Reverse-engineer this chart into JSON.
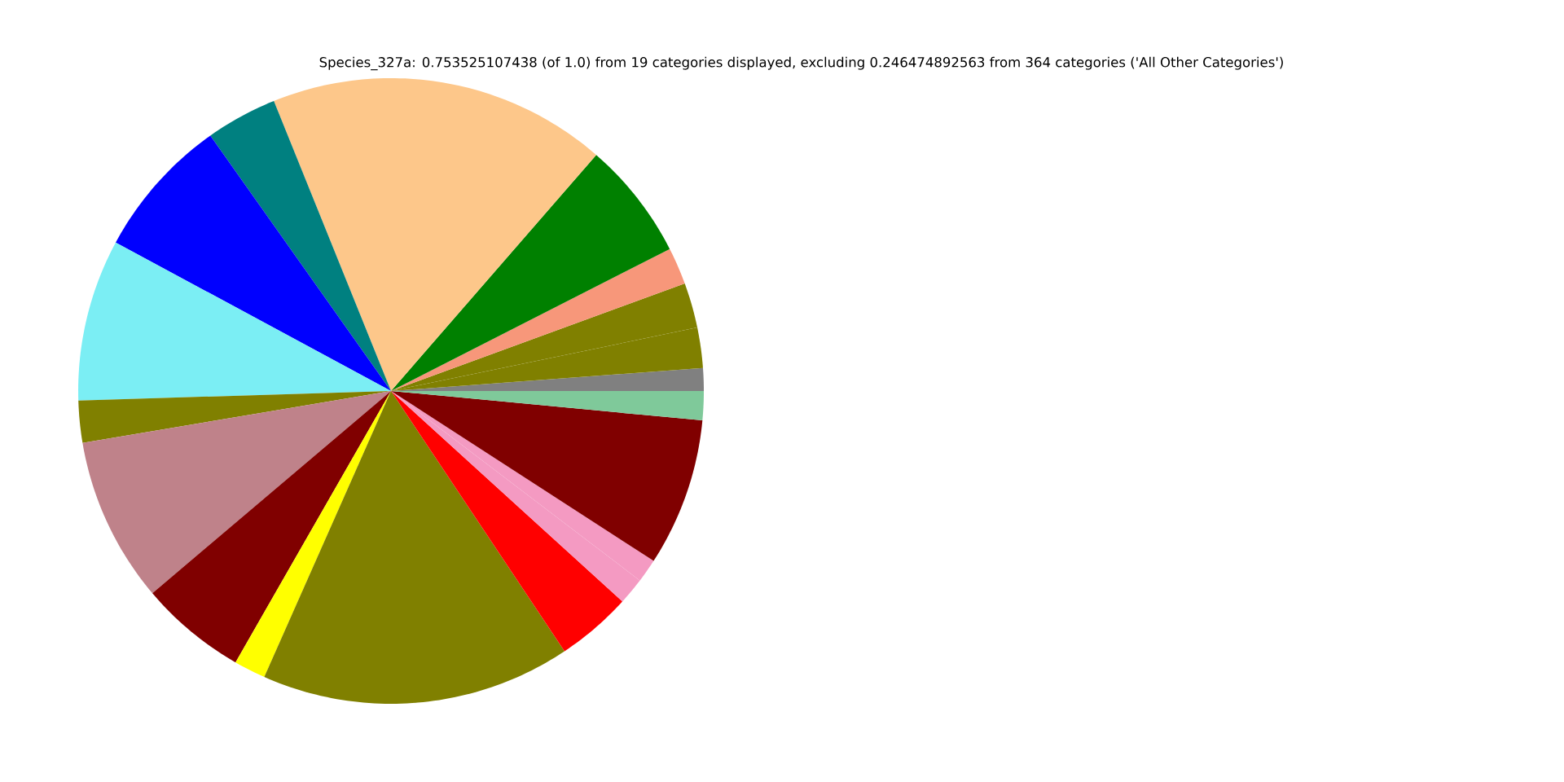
{
  "chart_data": {
    "type": "pie",
    "title": "Species_327a: 0.753525107438 (of 1.0) from 19 categories displayed, excluding 0.246474892563 from 364 categories ('All Other Categories')",
    "categories": [
      null,
      null,
      null,
      null,
      null,
      null,
      null,
      null,
      null,
      null,
      null,
      null,
      null,
      null,
      null,
      null,
      null,
      null,
      null
    ],
    "values": [
      1.17,
      2.08,
      2.33,
      1.92,
      6.11,
      17.5,
      3.69,
      7.33,
      8.36,
      2.17,
      8.53,
      5.53,
      1.64,
      16.0,
      3.89,
      1.39,
      1.22,
      7.64,
      1.5
    ],
    "colors": [
      "#808080",
      "#808000",
      "#808000",
      "#f7977a",
      "#008000",
      "#fdc78a",
      "#008080",
      "#0000ff",
      "#7beef4",
      "#808000",
      "#bf828a",
      "#800000",
      "#ffff00",
      "#808000",
      "#ff0000",
      "#f49ac2",
      "#f49ac2",
      "#800000",
      "#7fc99a"
    ]
  }
}
